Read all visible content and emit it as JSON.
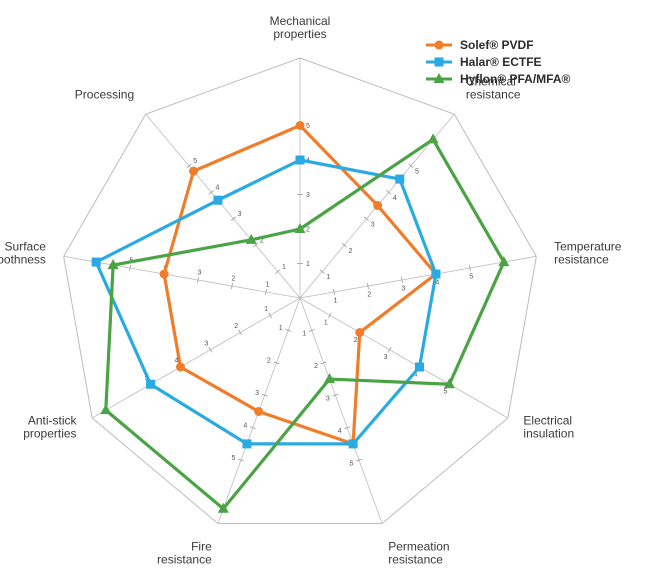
{
  "chart_data": {
    "type": "radar",
    "title": "",
    "scale": {
      "min": 0,
      "max": 5,
      "tick_values": [
        1,
        2,
        3,
        4,
        5
      ]
    },
    "categories": [
      "Mechanical\nproperties",
      "Chemical\nresistance",
      "Temperature\nresistance",
      "Electrical\ninsulation",
      "Permeation\nresistance",
      "Fire\nresistance",
      "Anti-stick\nproperties",
      "Surface\nsmoothness",
      "Processing"
    ],
    "series": [
      {
        "name": "Solef® PVDF",
        "color": "#f07d2a",
        "marker": "circle",
        "values": [
          5,
          3.5,
          4,
          2,
          4.5,
          3.5,
          4,
          4,
          4.8
        ]
      },
      {
        "name": "Halar® ECTFE",
        "color": "#29aae2",
        "marker": "square",
        "values": [
          4,
          4.5,
          4,
          4,
          4.5,
          4.5,
          5,
          6,
          3.7
        ]
      },
      {
        "name": "Hyflon® PFA/MFA®",
        "color": "#4aa345",
        "marker": "triangle",
        "values": [
          2,
          6,
          6,
          5,
          2.5,
          6.5,
          6.5,
          5.5,
          2.2
        ]
      }
    ],
    "grid": true,
    "legend_position": "top-right"
  }
}
